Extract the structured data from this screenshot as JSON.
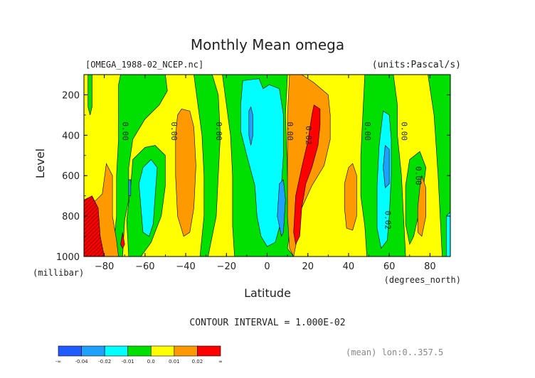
{
  "chart_data": {
    "type": "heatmap",
    "title": "Monthly Mean omega",
    "file_label": "[OMEGA_1988-02_NCEP.nc]",
    "units_label": "(units:Pascal/s)",
    "xlabel": "Latitude",
    "x_units": "(degrees_north)",
    "ylabel": "Level",
    "y_units": "(millibar)",
    "xlim": [
      -90,
      90
    ],
    "ylim": [
      1000,
      100
    ],
    "x_ticks": [
      -80,
      -60,
      -40,
      -20,
      0,
      20,
      40,
      60,
      80
    ],
    "y_ticks": [
      200,
      400,
      600,
      800,
      1000
    ],
    "contour_interval_text": "CONTOUR INTERVAL = 1.000E-02",
    "mean_text": "(mean) lon:0..357.5",
    "contour_labels": [
      {
        "text": "0.00",
        "lat": -71,
        "level": 380
      },
      {
        "text": "0.00",
        "lat": -47,
        "level": 380
      },
      {
        "text": "0.00",
        "lat": -25,
        "level": 380
      },
      {
        "text": "0.00",
        "lat": 10,
        "level": 380
      },
      {
        "text": "0.02",
        "lat": 19,
        "level": 400
      },
      {
        "text": "0.00",
        "lat": 48,
        "level": 380
      },
      {
        "text": "0.00",
        "lat": 66,
        "level": 380
      },
      {
        "text": "0.00",
        "lat": 73,
        "level": 600
      },
      {
        "text": "0.02",
        "lat": 58,
        "level": 820
      }
    ],
    "colorbar": {
      "colors": [
        "#1f5bff",
        "#1ea0ff",
        "#00ffff",
        "#00e000",
        "#ffff00",
        "#ff9900",
        "#ff0000"
      ],
      "tick_labels": [
        "-∞",
        "-0.04",
        "-0.02",
        "-0.01",
        "0.0",
        "0.01",
        "0.02",
        "∞"
      ]
    },
    "regions": [
      {
        "name": "yellow-base",
        "color": "#ffff00",
        "value_range": [
          0.0,
          0.01
        ],
        "poly": [
          [
            -90,
            100
          ],
          [
            90,
            100
          ],
          [
            90,
            1000
          ],
          [
            -90,
            1000
          ]
        ]
      },
      {
        "name": "green-sh-upper",
        "color": "#00e000",
        "value_range": [
          -0.01,
          0.0
        ],
        "poly": [
          [
            -72,
            100
          ],
          [
            -50,
            100
          ],
          [
            -49,
            180
          ],
          [
            -53,
            250
          ],
          [
            -60,
            320
          ],
          [
            -66,
            420
          ],
          [
            -68,
            560
          ],
          [
            -68,
            720
          ],
          [
            -70,
            820
          ],
          [
            -71,
            1000
          ],
          [
            -76,
            1000
          ],
          [
            -74,
            800
          ],
          [
            -74,
            600
          ],
          [
            -73,
            420
          ],
          [
            -73,
            280
          ],
          [
            -73,
            150
          ]
        ]
      },
      {
        "name": "green-sh-lower",
        "color": "#00e000",
        "value_range": [
          -0.01,
          0.0
        ],
        "poly": [
          [
            -66,
            520
          ],
          [
            -60,
            460
          ],
          [
            -55,
            450
          ],
          [
            -50,
            500
          ],
          [
            -50,
            650
          ],
          [
            -52,
            800
          ],
          [
            -57,
            930
          ],
          [
            -62,
            1000
          ],
          [
            -68,
            1000
          ],
          [
            -69,
            820
          ],
          [
            -67,
            650
          ]
        ]
      },
      {
        "name": "green-sh-stripe",
        "color": "#00e000",
        "value_range": [
          -0.01,
          0.0
        ],
        "poly": [
          [
            -36,
            100
          ],
          [
            -27,
            100
          ],
          [
            -24,
            200
          ],
          [
            -23,
            400
          ],
          [
            -24,
            600
          ],
          [
            -25,
            800
          ],
          [
            -29,
            1000
          ],
          [
            -33,
            1000
          ],
          [
            -31,
            800
          ],
          [
            -31,
            600
          ],
          [
            -32,
            400
          ],
          [
            -34,
            250
          ]
        ]
      },
      {
        "name": "green-tropics",
        "color": "#00e000",
        "value_range": [
          -0.01,
          0.0
        ],
        "poly": [
          [
            -22,
            100
          ],
          [
            10,
            100
          ],
          [
            9,
            300
          ],
          [
            10,
            600
          ],
          [
            12,
            800
          ],
          [
            10,
            960
          ],
          [
            13,
            1000
          ],
          [
            -16,
            1000
          ],
          [
            -17,
            850
          ],
          [
            -17,
            600
          ],
          [
            -18,
            400
          ],
          [
            -20,
            250
          ]
        ]
      },
      {
        "name": "green-nh-mid",
        "color": "#00e000",
        "value_range": [
          -0.01,
          0.0
        ],
        "poly": [
          [
            48,
            100
          ],
          [
            62,
            100
          ],
          [
            64,
            250
          ],
          [
            64,
            400
          ],
          [
            66,
            600
          ],
          [
            67,
            800
          ],
          [
            68,
            1000
          ],
          [
            49,
            1000
          ],
          [
            48,
            850
          ],
          [
            46,
            700
          ],
          [
            46,
            500
          ],
          [
            47,
            300
          ]
        ]
      },
      {
        "name": "green-nh-70-a",
        "color": "#00e000",
        "value_range": [
          -0.01,
          0.0
        ],
        "poly": [
          [
            70,
            520
          ],
          [
            75,
            480
          ],
          [
            78,
            560
          ],
          [
            76,
            720
          ],
          [
            72,
            900
          ],
          [
            70,
            940
          ],
          [
            68,
            840
          ],
          [
            68,
            650
          ]
        ]
      },
      {
        "name": "green-nh-polar",
        "color": "#00e000",
        "value_range": [
          -0.01,
          0.0
        ],
        "poly": [
          [
            79,
            100
          ],
          [
            90,
            100
          ],
          [
            90,
            1000
          ],
          [
            86,
            1000
          ],
          [
            85,
            800
          ],
          [
            84,
            600
          ],
          [
            83,
            450
          ],
          [
            82,
            300
          ]
        ]
      },
      {
        "name": "green-small-sh",
        "color": "#00e000",
        "value_range": [
          -0.01,
          0.0
        ],
        "poly": [
          [
            -88,
            100
          ],
          [
            -86,
            100
          ],
          [
            -86,
            260
          ],
          [
            -87,
            300
          ],
          [
            -88,
            260
          ]
        ]
      },
      {
        "name": "orange-sh-60",
        "color": "#ff9900",
        "value_range": [
          0.01,
          0.02
        ],
        "poly": [
          [
            -79,
            540
          ],
          [
            -76,
            600
          ],
          [
            -76,
            800
          ],
          [
            -74,
            920
          ],
          [
            -73,
            1000
          ],
          [
            -82,
            1000
          ],
          [
            -84,
            880
          ],
          [
            -85,
            730
          ],
          [
            -81,
            690
          ]
        ]
      },
      {
        "name": "orange-sh-40",
        "color": "#ff9900",
        "value_range": [
          0.01,
          0.02
        ],
        "poly": [
          [
            -42,
            270
          ],
          [
            -38,
            280
          ],
          [
            -36,
            360
          ],
          [
            -35,
            550
          ],
          [
            -36,
            760
          ],
          [
            -38,
            880
          ],
          [
            -41,
            900
          ],
          [
            -44,
            800
          ],
          [
            -45,
            600
          ],
          [
            -45,
            400
          ],
          [
            -44,
            300
          ]
        ]
      },
      {
        "name": "orange-nh-20",
        "color": "#ff9900",
        "value_range": [
          0.01,
          0.02
        ],
        "poly": [
          [
            11,
            100
          ],
          [
            17,
            100
          ],
          [
            23,
            140
          ],
          [
            30,
            200
          ],
          [
            31,
            300
          ],
          [
            31,
            420
          ],
          [
            28,
            550
          ],
          [
            22,
            650
          ],
          [
            17,
            760
          ],
          [
            15,
            900
          ],
          [
            13,
            1000
          ],
          [
            11,
            960
          ],
          [
            10,
            800
          ],
          [
            10,
            600
          ],
          [
            10,
            300
          ]
        ]
      },
      {
        "name": "orange-nh-40",
        "color": "#ff9900",
        "value_range": [
          0.01,
          0.02
        ],
        "poly": [
          [
            40,
            560
          ],
          [
            42,
            540
          ],
          [
            44,
            600
          ],
          [
            44,
            800
          ],
          [
            42,
            870
          ],
          [
            39,
            860
          ],
          [
            38,
            760
          ],
          [
            38,
            640
          ]
        ]
      },
      {
        "name": "orange-nh-80",
        "color": "#ff9900",
        "value_range": [
          0.01,
          0.02
        ],
        "poly": [
          [
            76,
            600
          ],
          [
            78,
            660
          ],
          [
            78,
            800
          ],
          [
            76,
            900
          ],
          [
            74,
            880
          ],
          [
            74,
            760
          ],
          [
            75,
            660
          ]
        ]
      },
      {
        "name": "red-nh-20",
        "color": "#ff0000",
        "value_range": [
          0.02,
          0.04
        ],
        "poly": [
          [
            23,
            250
          ],
          [
            26,
            270
          ],
          [
            26,
            350
          ],
          [
            25,
            450
          ],
          [
            22,
            560
          ],
          [
            19,
            640
          ],
          [
            17,
            760
          ],
          [
            16,
            900
          ],
          [
            14,
            940
          ],
          [
            13,
            880
          ],
          [
            14,
            700
          ],
          [
            17,
            560
          ],
          [
            20,
            430
          ],
          [
            22,
            300
          ]
        ]
      },
      {
        "name": "red-sh-85",
        "color": "#cc0000",
        "value_range": [
          0.02,
          0.04
        ],
        "poly": [
          [
            -90,
            720
          ],
          [
            -86,
            700
          ],
          [
            -83,
            760
          ],
          [
            -82,
            900
          ],
          [
            -80,
            1000
          ],
          [
            -90,
            1000
          ]
        ]
      },
      {
        "name": "red-sh-spot",
        "color": "#ff0000",
        "value_range": [
          0.02,
          0.04
        ],
        "poly": [
          [
            -71,
            880
          ],
          [
            -70,
            940
          ],
          [
            -71,
            960
          ],
          [
            -72,
            940
          ]
        ]
      },
      {
        "name": "cyan-sh-60",
        "color": "#00ffff",
        "value_range": [
          -0.02,
          -0.01
        ],
        "poly": [
          [
            -61,
            560
          ],
          [
            -57,
            520
          ],
          [
            -54,
            560
          ],
          [
            -55,
            700
          ],
          [
            -56,
            840
          ],
          [
            -58,
            900
          ],
          [
            -61,
            880
          ],
          [
            -62,
            760
          ],
          [
            -63,
            640
          ]
        ]
      },
      {
        "name": "cyan-tropics",
        "color": "#00ffff",
        "value_range": [
          -0.02,
          -0.01
        ],
        "poly": [
          [
            -12,
            130
          ],
          [
            -4,
            120
          ],
          [
            -2,
            170
          ],
          [
            1,
            150
          ],
          [
            6,
            170
          ],
          [
            8,
            300
          ],
          [
            8,
            500
          ],
          [
            7,
            650
          ],
          [
            7,
            820
          ],
          [
            4,
            930
          ],
          [
            0,
            950
          ],
          [
            -3,
            900
          ],
          [
            -5,
            800
          ],
          [
            -6,
            650
          ],
          [
            -10,
            500
          ],
          [
            -13,
            380
          ],
          [
            -13,
            250
          ]
        ]
      },
      {
        "name": "cyan-nh-60",
        "color": "#00ffff",
        "value_range": [
          -0.02,
          -0.01
        ],
        "poly": [
          [
            57,
            280
          ],
          [
            60,
            300
          ],
          [
            61,
            420
          ],
          [
            61,
            600
          ],
          [
            60,
            800
          ],
          [
            59,
            920
          ],
          [
            56,
            960
          ],
          [
            54,
            860
          ],
          [
            54,
            650
          ],
          [
            55,
            450
          ]
        ]
      },
      {
        "name": "cyan-nh-polar",
        "color": "#00ffff",
        "value_range": [
          -0.02,
          -0.01
        ],
        "poly": [
          [
            88,
            800
          ],
          [
            90,
            780
          ],
          [
            90,
            1000
          ],
          [
            88,
            1000
          ]
        ]
      },
      {
        "name": "blue-tropics-1",
        "color": "#1ea0ff",
        "value_range": [
          -0.04,
          -0.02
        ],
        "poly": [
          [
            -9,
            280
          ],
          [
            -8,
            260
          ],
          [
            -7,
            300
          ],
          [
            -7,
            400
          ],
          [
            -8,
            450
          ],
          [
            -9,
            400
          ]
        ]
      },
      {
        "name": "blue-tropics-2",
        "color": "#1ea0ff",
        "value_range": [
          -0.04,
          -0.02
        ],
        "poly": [
          [
            6,
            640
          ],
          [
            8,
            620
          ],
          [
            9,
            720
          ],
          [
            8,
            880
          ],
          [
            7,
            900
          ],
          [
            5,
            800
          ]
        ]
      },
      {
        "name": "blue-nh-60",
        "color": "#1ea0ff",
        "value_range": [
          -0.04,
          -0.02
        ],
        "poly": [
          [
            58,
            450
          ],
          [
            60,
            470
          ],
          [
            60,
            640
          ],
          [
            58,
            660
          ],
          [
            57,
            560
          ]
        ]
      },
      {
        "name": "blue-sh-strip",
        "color": "#1ea0ff",
        "value_range": [
          -0.04,
          -0.02
        ],
        "poly": [
          [
            -68,
            620
          ],
          [
            -67,
            620
          ],
          [
            -67,
            700
          ],
          [
            -68,
            700
          ]
        ]
      }
    ]
  }
}
